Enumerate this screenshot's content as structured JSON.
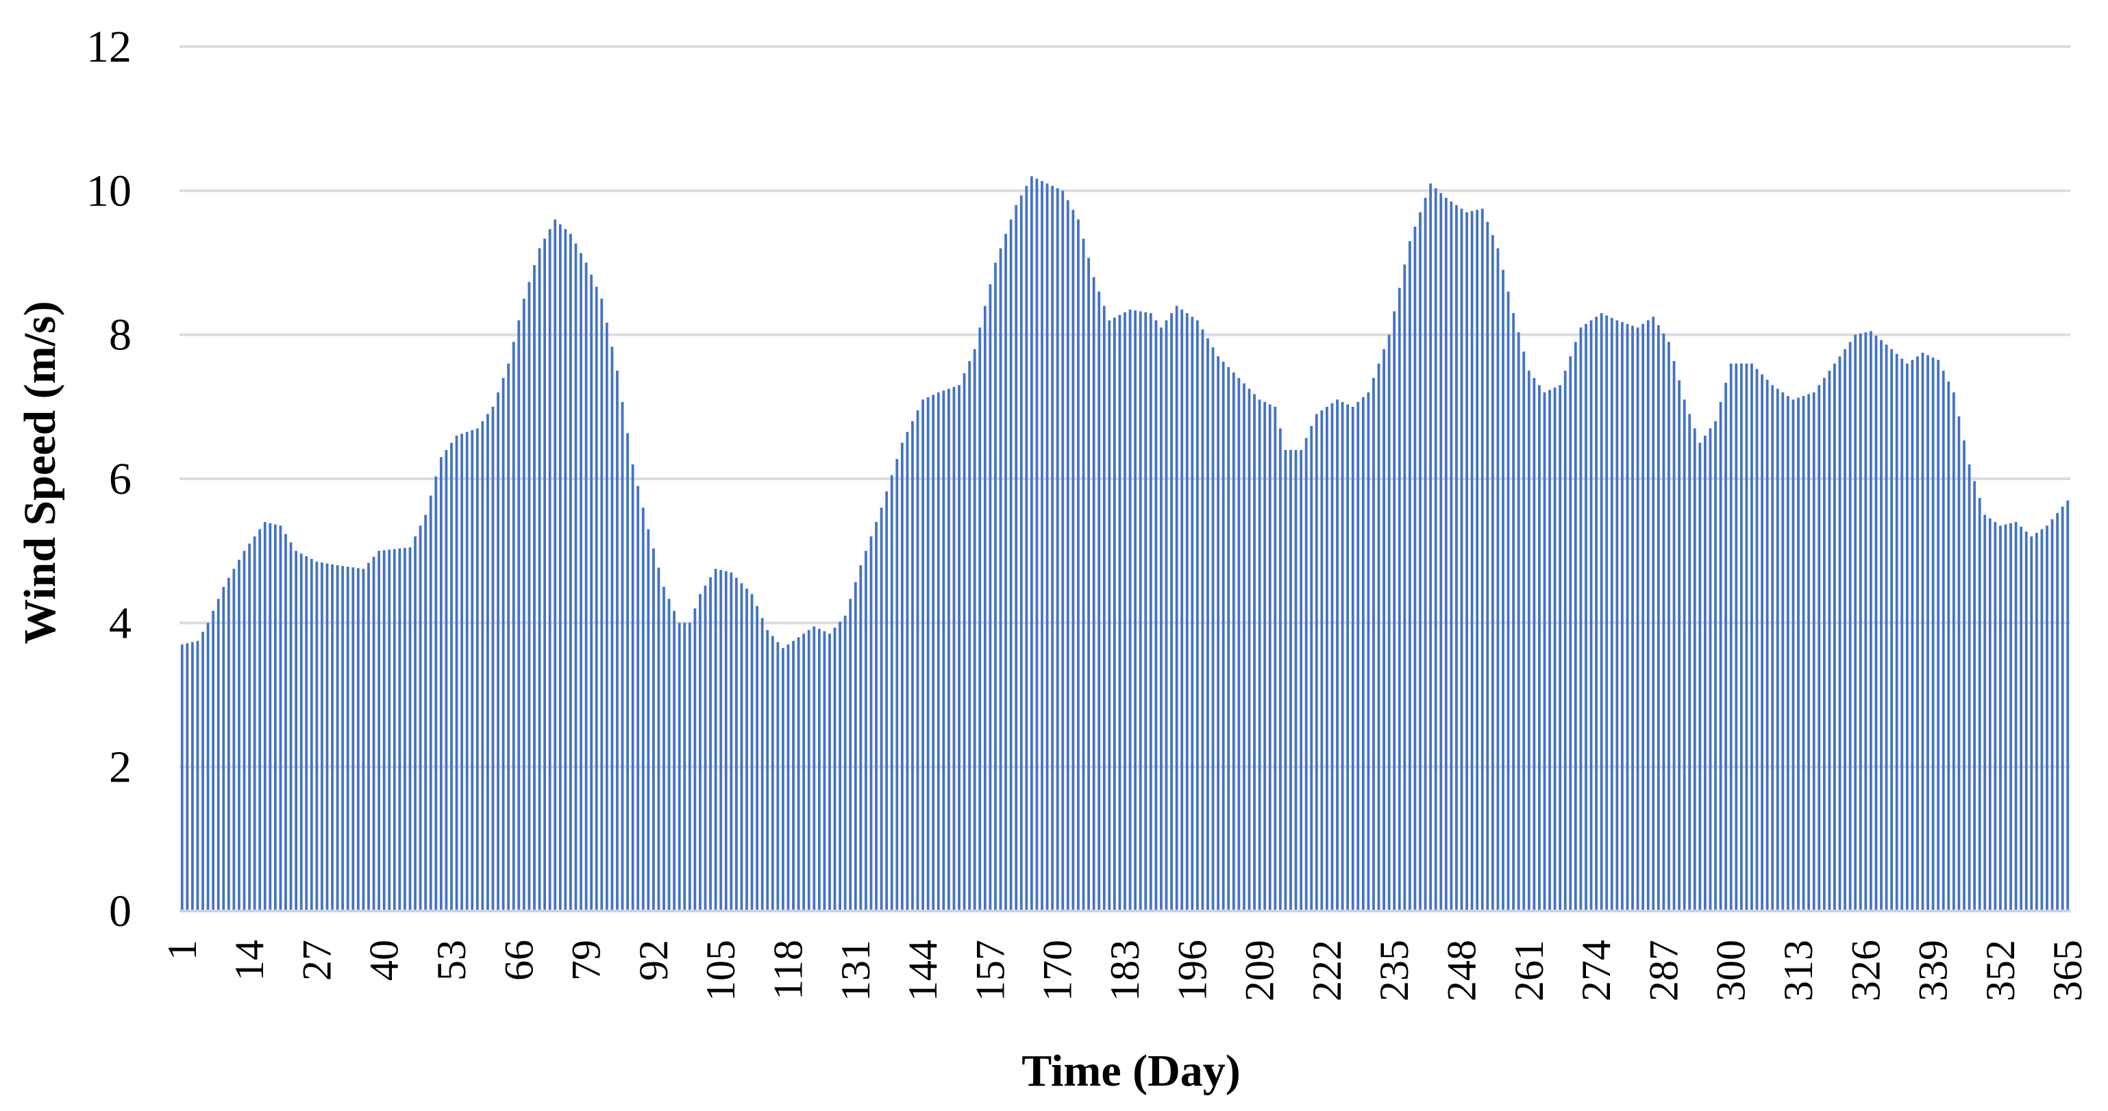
{
  "chart_data": {
    "type": "bar",
    "title": "",
    "xlabel": "Time (Day)",
    "ylabel": "Wind Speed (m/s)",
    "ylim": [
      0,
      12
    ],
    "yticks": [
      "0",
      "2",
      "4",
      "6",
      "8",
      "10",
      "12"
    ],
    "xticks": [
      "1",
      "14",
      "27",
      "40",
      "53",
      "66",
      "79",
      "92",
      "105",
      "118",
      "131",
      "144",
      "157",
      "170",
      "183",
      "196",
      "209",
      "222",
      "235",
      "248",
      "261",
      "274",
      "287",
      "300",
      "313",
      "326",
      "339",
      "352",
      "365"
    ],
    "grid": true,
    "legend": "none",
    "colors": {
      "bar": "#4472C4",
      "grid": "#D9DDE3",
      "baseline": "#C9D3E6"
    },
    "anchors": [
      [
        1,
        3.7
      ],
      [
        4,
        3.75
      ],
      [
        6,
        4.0
      ],
      [
        9,
        4.5
      ],
      [
        13,
        5.0
      ],
      [
        17,
        5.4
      ],
      [
        20,
        5.35
      ],
      [
        23,
        5.0
      ],
      [
        27,
        4.85
      ],
      [
        31,
        4.8
      ],
      [
        36,
        4.75
      ],
      [
        39,
        5.0
      ],
      [
        45,
        5.05
      ],
      [
        48,
        5.5
      ],
      [
        51,
        6.3
      ],
      [
        54,
        6.6
      ],
      [
        58,
        6.7
      ],
      [
        61,
        7.0
      ],
      [
        64,
        7.6
      ],
      [
        67,
        8.5
      ],
      [
        70,
        9.2
      ],
      [
        73,
        9.6
      ],
      [
        76,
        9.4
      ],
      [
        79,
        9.0
      ],
      [
        82,
        8.5
      ],
      [
        85,
        7.5
      ],
      [
        88,
        6.2
      ],
      [
        91,
        5.3
      ],
      [
        94,
        4.5
      ],
      [
        97,
        4.0
      ],
      [
        99,
        4.0
      ],
      [
        101,
        4.4
      ],
      [
        104,
        4.75
      ],
      [
        107,
        4.7
      ],
      [
        111,
        4.4
      ],
      [
        114,
        3.9
      ],
      [
        117,
        3.65
      ],
      [
        120,
        3.8
      ],
      [
        123,
        3.95
      ],
      [
        126,
        3.85
      ],
      [
        129,
        4.1
      ],
      [
        132,
        4.8
      ],
      [
        136,
        5.6
      ],
      [
        140,
        6.5
      ],
      [
        144,
        7.1
      ],
      [
        147,
        7.2
      ],
      [
        151,
        7.3
      ],
      [
        154,
        7.8
      ],
      [
        158,
        9.0
      ],
      [
        162,
        9.8
      ],
      [
        165,
        10.2
      ],
      [
        168,
        10.1
      ],
      [
        171,
        10.0
      ],
      [
        174,
        9.6
      ],
      [
        177,
        8.8
      ],
      [
        180,
        8.2
      ],
      [
        184,
        8.35
      ],
      [
        188,
        8.3
      ],
      [
        190,
        8.1
      ],
      [
        193,
        8.4
      ],
      [
        197,
        8.2
      ],
      [
        201,
        7.7
      ],
      [
        205,
        7.4
      ],
      [
        209,
        7.1
      ],
      [
        212,
        7.0
      ],
      [
        214,
        6.4
      ],
      [
        217,
        6.4
      ],
      [
        220,
        6.9
      ],
      [
        224,
        7.1
      ],
      [
        227,
        7.0
      ],
      [
        230,
        7.2
      ],
      [
        234,
        8.0
      ],
      [
        238,
        9.3
      ],
      [
        242,
        10.1
      ],
      [
        245,
        9.9
      ],
      [
        249,
        9.7
      ],
      [
        252,
        9.75
      ],
      [
        255,
        9.2
      ],
      [
        258,
        8.3
      ],
      [
        261,
        7.5
      ],
      [
        264,
        7.2
      ],
      [
        267,
        7.3
      ],
      [
        271,
        8.1
      ],
      [
        275,
        8.3
      ],
      [
        278,
        8.2
      ],
      [
        282,
        8.1
      ],
      [
        285,
        8.25
      ],
      [
        288,
        7.9
      ],
      [
        291,
        7.1
      ],
      [
        294,
        6.5
      ],
      [
        297,
        6.8
      ],
      [
        300,
        7.6
      ],
      [
        304,
        7.6
      ],
      [
        308,
        7.3
      ],
      [
        312,
        7.1
      ],
      [
        316,
        7.2
      ],
      [
        320,
        7.6
      ],
      [
        324,
        8.0
      ],
      [
        327,
        8.05
      ],
      [
        331,
        7.8
      ],
      [
        334,
        7.6
      ],
      [
        337,
        7.75
      ],
      [
        340,
        7.65
      ],
      [
        343,
        7.2
      ],
      [
        346,
        6.2
      ],
      [
        349,
        5.5
      ],
      [
        352,
        5.35
      ],
      [
        355,
        5.4
      ],
      [
        358,
        5.2
      ],
      [
        361,
        5.35
      ],
      [
        365,
        5.7
      ]
    ]
  }
}
